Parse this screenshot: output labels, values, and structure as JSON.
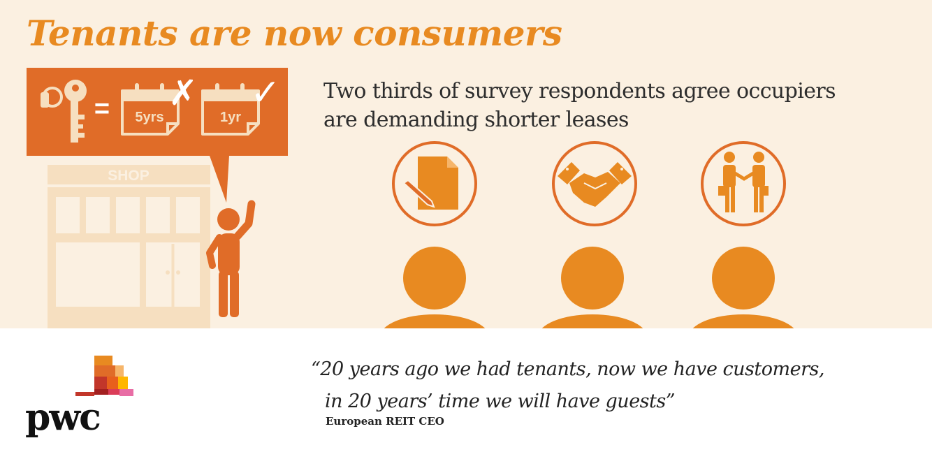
{
  "title": "Tenants are now consumers",
  "subtitle": {
    "line1": "Two thirds of survey respondents agree occupiers",
    "line2": "are demanding shorter leases"
  },
  "bubble": {
    "equals": "=",
    "calendar_old": "5yrs",
    "calendar_new": "1yr",
    "cross_mark": "✗",
    "check_mark": "✓"
  },
  "shop_sign": "SHOP",
  "icons": [
    "document-pen-icon",
    "handshake-icon",
    "business-handshake-icon"
  ],
  "quote": {
    "line1": "“20 years ago we had tenants, now we have customers,",
    "line2": "in 20 years’ time we will have guests”",
    "attribution": "European REIT CEO"
  },
  "logo_text": "pwc",
  "colors": {
    "accent": "#e88a21",
    "bubble": "#e06c28",
    "background": "#fbf0e1",
    "shop": "#f6dfc0"
  }
}
